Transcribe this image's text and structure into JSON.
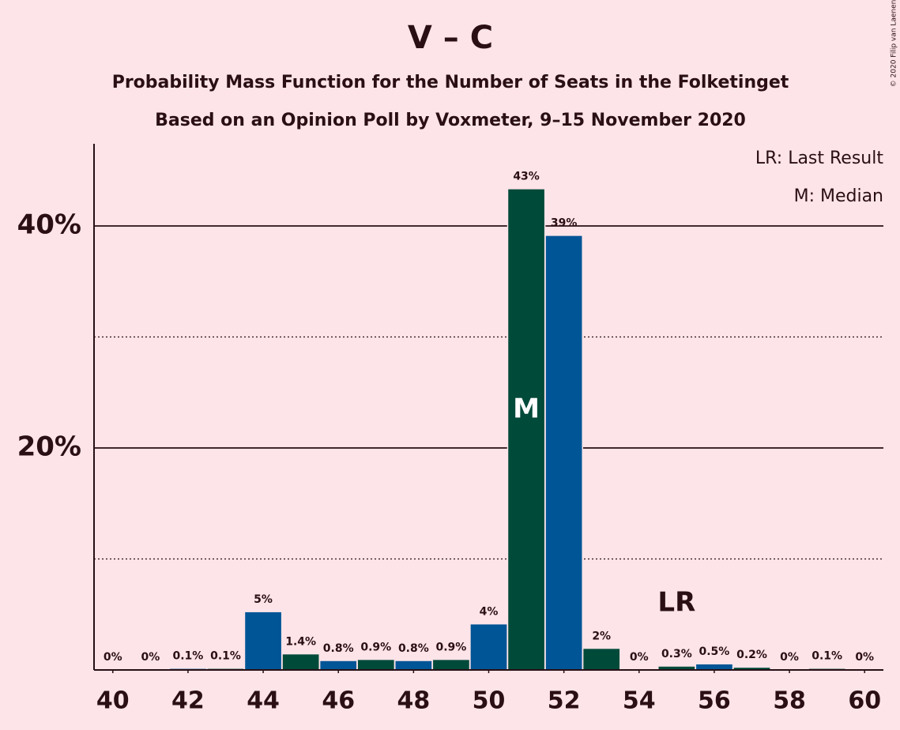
{
  "chart_data": {
    "type": "bar",
    "title": "V – C",
    "subtitle": "Probability Mass Function for the Number of Seats in the Folketinget",
    "subtitle2": "Based on an Opinion Poll by Voxmeter, 9–15 November 2020",
    "copyright": "© 2020 Filip van Laenen",
    "legend": [
      "LR: Last Result",
      "M: Median"
    ],
    "x": [
      40,
      41,
      42,
      43,
      44,
      45,
      46,
      47,
      48,
      49,
      50,
      51,
      52,
      53,
      54,
      55,
      56,
      57,
      58,
      59,
      60
    ],
    "values": [
      0,
      0,
      0.1,
      0.1,
      5.2,
      1.4,
      0.8,
      0.9,
      0.8,
      0.9,
      4.1,
      43.3,
      39.1,
      1.9,
      0,
      0.3,
      0.5,
      0.2,
      0,
      0.1,
      0
    ],
    "value_labels": [
      "0%",
      "0%",
      "0.1%",
      "0.1%",
      "5%",
      "1.4%",
      "0.8%",
      "0.9%",
      "0.8%",
      "0.9%",
      "4%",
      "43%",
      "39%",
      "2%",
      "0%",
      "0.3%",
      "0.5%",
      "0.2%",
      "0%",
      "0.1%",
      "0%"
    ],
    "colors": [
      "#005596",
      "#004a3a",
      "#005596",
      "#004a3a",
      "#005596",
      "#004a3a",
      "#005596",
      "#004a3a",
      "#005596",
      "#004a3a",
      "#005596",
      "#004a3a",
      "#005596",
      "#004a3a",
      "#005596",
      "#004a3a",
      "#005596",
      "#004a3a",
      "#005596",
      "#004a3a",
      "#005596"
    ],
    "xlim": [
      39.5,
      60.5
    ],
    "xticks": [
      40,
      42,
      44,
      46,
      48,
      50,
      52,
      54,
      56,
      58,
      60
    ],
    "ylim": [
      0,
      47.4
    ],
    "yticks": [
      {
        "value": 20,
        "label": "20%"
      },
      {
        "value": 40,
        "label": "40%"
      }
    ],
    "minor_yticks": [
      10,
      30
    ],
    "annotations": [
      {
        "text": "M",
        "x": 51
      },
      {
        "text": "LR",
        "x": 55
      }
    ]
  }
}
